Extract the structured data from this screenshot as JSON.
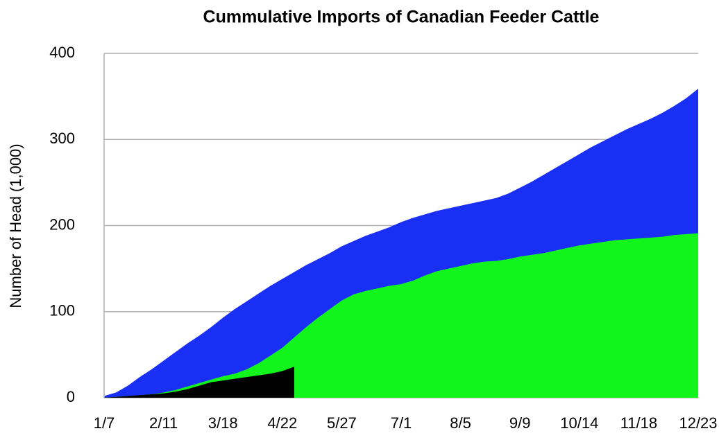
{
  "chart_data": {
    "type": "area",
    "title": "Cummulative Imports of Canadian Feeder Cattle",
    "y_label": "Number of Head (1,000)",
    "categories": [
      "1/7",
      null,
      null,
      null,
      null,
      "2/11",
      null,
      null,
      null,
      null,
      "3/18",
      null,
      null,
      null,
      null,
      "4/22",
      null,
      null,
      null,
      null,
      "5/27",
      null,
      null,
      null,
      null,
      "7/1",
      null,
      null,
      null,
      null,
      "8/5",
      null,
      null,
      null,
      null,
      "9/9",
      null,
      null,
      null,
      null,
      "10/14",
      null,
      null,
      null,
      null,
      "11/18",
      null,
      null,
      null,
      null,
      "12/23"
    ],
    "series": [
      {
        "color": "#1a2ff5",
        "values": [
          2,
          6,
          14,
          24,
          33,
          43,
          53,
          63,
          72,
          82,
          93,
          103,
          112,
          121,
          130,
          138,
          146,
          154,
          161,
          168,
          176,
          182,
          188,
          193,
          198,
          204,
          209,
          213,
          217,
          220,
          223,
          226,
          229,
          232,
          237,
          244,
          251,
          259,
          267,
          275,
          283,
          291,
          298,
          305,
          312,
          318,
          324,
          331,
          339,
          348,
          359
        ]
      },
      {
        "color": "#11f51c",
        "values": [
          0,
          1,
          2,
          3,
          4,
          6,
          9,
          13,
          17,
          21,
          25,
          28,
          33,
          40,
          49,
          58,
          70,
          82,
          93,
          103,
          113,
          120,
          124,
          127,
          130,
          132,
          136,
          142,
          147,
          150,
          153,
          156,
          158,
          159,
          161,
          164,
          166,
          168,
          171,
          174,
          177,
          179,
          181,
          183,
          184,
          185,
          186,
          187,
          189,
          190,
          191
        ]
      },
      {
        "color": "#000000",
        "values": [
          0,
          1,
          2,
          3,
          4,
          5,
          7,
          10,
          14,
          18,
          20,
          22,
          24,
          26,
          28,
          31,
          36,
          null,
          null,
          null,
          null,
          null,
          null,
          null,
          null,
          null,
          null,
          null,
          null,
          null,
          null,
          null,
          null,
          null,
          null,
          null,
          null,
          null,
          null,
          null,
          null,
          null,
          null,
          null,
          null,
          null,
          null,
          null,
          null,
          null,
          null
        ]
      }
    ],
    "ylim": [
      0,
      400
    ],
    "yticks": [
      0,
      100,
      200,
      300,
      400
    ],
    "grid": true
  }
}
